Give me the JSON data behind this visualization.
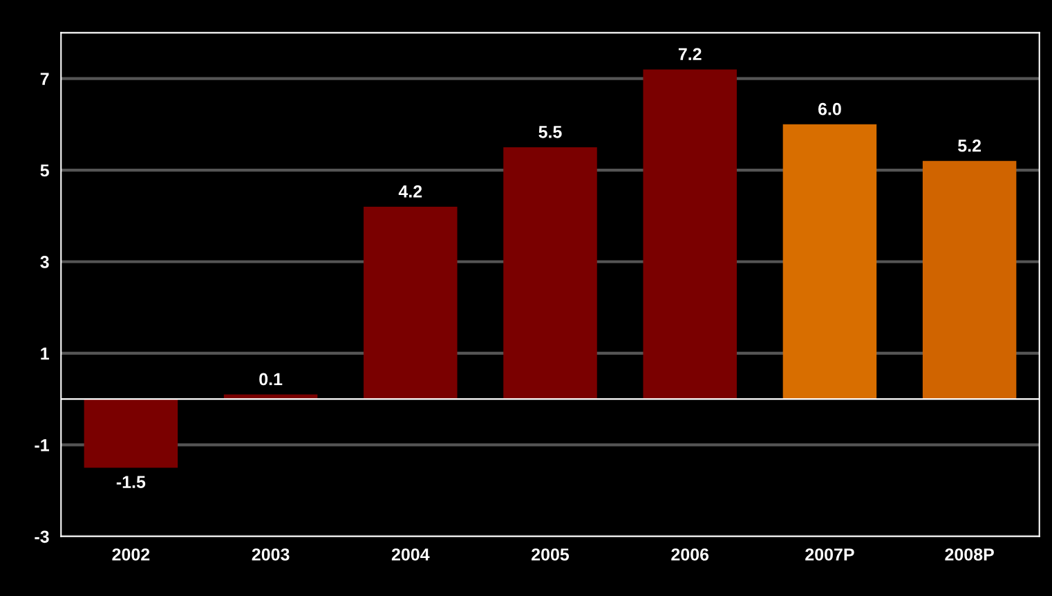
{
  "chart_data": {
    "type": "bar",
    "categories": [
      "2002",
      "2003",
      "2004",
      "2005",
      "2006",
      "2007P",
      "2008P"
    ],
    "values": [
      -1.5,
      0.1,
      4.2,
      5.5,
      7.2,
      6.0,
      5.2
    ],
    "colors": [
      "#7a0000",
      "#7a0000",
      "#7a0000",
      "#7a0000",
      "#7a0000",
      "#d86e00",
      "#d06400"
    ],
    "value_labels": [
      "-1.5",
      "0.1",
      "4.2",
      "5.5",
      "7.2",
      "6.0",
      "5.2"
    ],
    "ylim": [
      -3,
      8
    ],
    "yticks": [
      -3,
      -1,
      1,
      3,
      5,
      7
    ],
    "grid": "y"
  }
}
